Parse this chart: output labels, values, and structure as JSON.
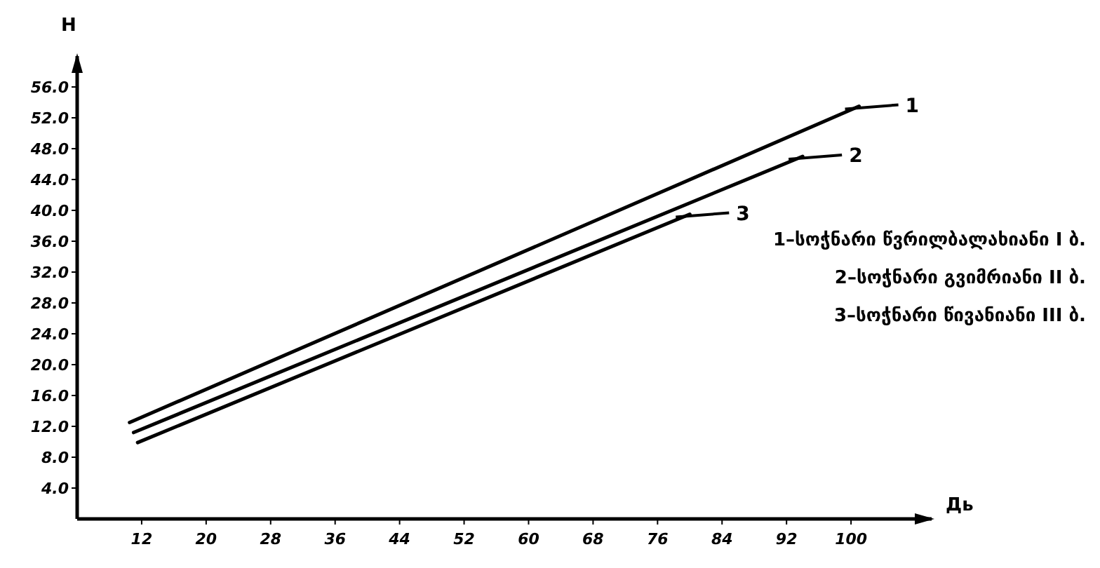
{
  "chart_data": {
    "type": "line",
    "xlabel": "Дь",
    "ylabel": "H",
    "xlim": [
      4,
      110
    ],
    "ylim": [
      0,
      60
    ],
    "xticks": [
      12,
      20,
      28,
      36,
      44,
      52,
      60,
      68,
      76,
      84,
      92,
      100
    ],
    "yticks": [
      {
        "value": 4,
        "label": "4.0"
      },
      {
        "value": 8,
        "label": "8.0"
      },
      {
        "value": 12,
        "label": "12.0"
      },
      {
        "value": 16,
        "label": "16.0"
      },
      {
        "value": 20,
        "label": "20.0"
      },
      {
        "value": 24,
        "label": "24.0"
      },
      {
        "value": 28,
        "label": "28.0"
      },
      {
        "value": 32,
        "label": "32.0"
      },
      {
        "value": 36,
        "label": "36.0"
      },
      {
        "value": 40,
        "label": "40.0"
      },
      {
        "value": 44,
        "label": "44.0"
      },
      {
        "value": 48,
        "label": "48.0"
      },
      {
        "value": 52,
        "label": "52.0"
      },
      {
        "value": 56,
        "label": "56.0"
      }
    ],
    "grid": false,
    "marker": "none",
    "line_style": "solid",
    "legend": "right",
    "series": [
      {
        "name": "1",
        "color": "#000000",
        "x": [
          10.5,
          101
        ],
        "values": [
          12.5,
          53.5
        ]
      },
      {
        "name": "2",
        "color": "#000000",
        "x": [
          11,
          94
        ],
        "values": [
          11.2,
          47
        ]
      },
      {
        "name": "3",
        "color": "#000000",
        "x": [
          11.5,
          80
        ],
        "values": [
          9.9,
          39.5
        ]
      }
    ],
    "annotations": [
      "1–სოჭნარი წვრილბალახიანი I ბ.",
      "2–სოჭნარი გვიმრიანი II ბ.",
      "3–სოჭნარი წივანიანი III ბ."
    ]
  }
}
